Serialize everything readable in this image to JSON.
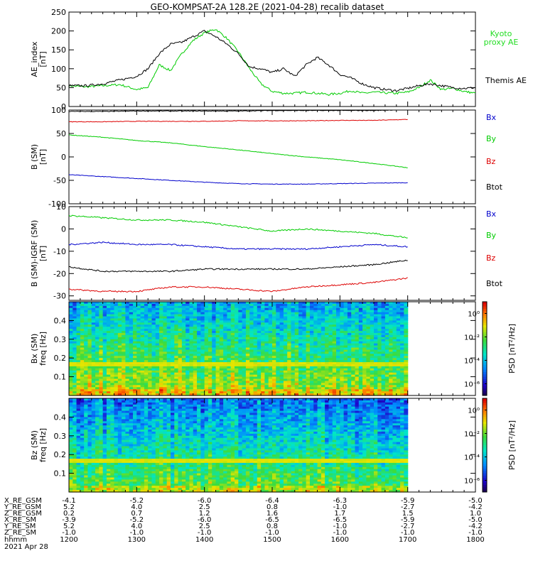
{
  "title": "GEO-KOMPSAT-2A 128.2E (2021-04-28) recalib dataset",
  "colors": {
    "axis": "#000000",
    "black": "#000000",
    "green": "#00cc00",
    "kyoto": "#22dd22",
    "red": "#dd0000",
    "blue": "#0000cc"
  },
  "chart_data": [
    {
      "type": "line",
      "id": "ae",
      "ylabel": [
        "AE_index",
        "[nT]"
      ],
      "ylim": [
        0,
        250
      ],
      "yticks": [
        0,
        50,
        100,
        150,
        200,
        250
      ],
      "xlim": [
        1200,
        1800
      ],
      "x_hhmm": [
        1200,
        1215,
        1230,
        1245,
        1300,
        1310,
        1320,
        1330,
        1340,
        1350,
        1400,
        1410,
        1420,
        1430,
        1440,
        1450,
        1500,
        1510,
        1520,
        1530,
        1540,
        1550,
        1600,
        1610,
        1620,
        1630,
        1640,
        1650,
        1700,
        1710,
        1720,
        1730,
        1740,
        1750,
        1800
      ],
      "series": [
        {
          "name": "Kyoto proxy AE",
          "color": "green",
          "values": [
            55,
            52,
            55,
            58,
            45,
            50,
            110,
            95,
            140,
            175,
            195,
            205,
            180,
            145,
            100,
            60,
            40,
            35,
            35,
            38,
            35,
            32,
            35,
            42,
            35,
            38,
            36,
            35,
            38,
            50,
            70,
            45,
            48,
            40,
            35
          ]
        },
        {
          "name": "Themis AE",
          "color": "black",
          "values": [
            55,
            55,
            60,
            70,
            80,
            100,
            140,
            165,
            170,
            185,
            200,
            185,
            165,
            140,
            105,
            100,
            90,
            100,
            80,
            110,
            130,
            110,
            85,
            75,
            60,
            50,
            45,
            42,
            48,
            55,
            60,
            55,
            50,
            48,
            50
          ]
        }
      ],
      "legend": [
        {
          "text": "Kyoto",
          "color": "kyoto"
        },
        {
          "text": "proxy AE",
          "color": "kyoto"
        },
        {
          "text": "Themis AE",
          "color": "black"
        }
      ]
    },
    {
      "type": "line",
      "id": "bsm",
      "ylabel": [
        "B (SM)",
        "[nT]"
      ],
      "ylim": [
        -100,
        100
      ],
      "yticks": [
        -100,
        -50,
        0,
        50,
        100
      ],
      "xlim": [
        1200,
        1800
      ],
      "x_hhmm": [
        1200,
        1230,
        1300,
        1330,
        1400,
        1430,
        1500,
        1530,
        1600,
        1630,
        1700
      ],
      "series": [
        {
          "name": "Bx",
          "color": "blue",
          "values": [
            -38,
            -42,
            -46,
            -50,
            -54,
            -57,
            -58,
            -58,
            -57,
            -56,
            -55
          ]
        },
        {
          "name": "By",
          "color": "green",
          "values": [
            47,
            42,
            35,
            30,
            22,
            15,
            7,
            0,
            -6,
            -14,
            -23
          ]
        },
        {
          "name": "Bz",
          "color": "red",
          "values": [
            75,
            75,
            76,
            76,
            76,
            77,
            77,
            77,
            78,
            78,
            80
          ]
        },
        {
          "name": "Btot",
          "color": "black",
          "values": [
            97,
            97,
            98,
            98,
            98,
            98,
            99,
            99,
            99,
            99,
            101
          ]
        }
      ],
      "legend": [
        {
          "text": "Bx",
          "color": "blue"
        },
        {
          "text": "By",
          "color": "green"
        },
        {
          "text": "Bz",
          "color": "red"
        },
        {
          "text": "Btot",
          "color": "black"
        }
      ]
    },
    {
      "type": "line",
      "id": "bigrf",
      "ylabel": [
        "B (SM)-IGRF (SM)",
        "[nT]"
      ],
      "ylim": [
        -32,
        10
      ],
      "yticks": [
        -30,
        -20,
        -10,
        0,
        10
      ],
      "xlim": [
        1200,
        1800
      ],
      "x_hhmm": [
        1200,
        1230,
        1300,
        1330,
        1400,
        1430,
        1500,
        1530,
        1600,
        1630,
        1700
      ],
      "series": [
        {
          "name": "By",
          "color": "green",
          "values": [
            6,
            5,
            4,
            4,
            3,
            1,
            -1,
            0,
            -1,
            -2,
            -4
          ]
        },
        {
          "name": "Bx",
          "color": "blue",
          "values": [
            -7,
            -6,
            -7,
            -7,
            -8,
            -9,
            -9,
            -9,
            -8,
            -7,
            -8
          ]
        },
        {
          "name": "Btot",
          "color": "black",
          "values": [
            -17,
            -19,
            -19,
            -19,
            -18,
            -18,
            -18,
            -18,
            -17,
            -16,
            -14
          ]
        },
        {
          "name": "Bz",
          "color": "red",
          "values": [
            -27,
            -28,
            -28,
            -26,
            -26,
            -27,
            -28,
            -26,
            -25,
            -24,
            -22
          ]
        }
      ],
      "legend": [
        {
          "text": "Bx",
          "color": "blue"
        },
        {
          "text": "By",
          "color": "green"
        },
        {
          "text": "Bz",
          "color": "red"
        },
        {
          "text": "Btot",
          "color": "black"
        }
      ]
    },
    {
      "type": "heatmap",
      "id": "specbx",
      "ylabel": [
        "Bx (SM)",
        "freq [Hz]"
      ],
      "ylim": [
        0,
        0.5
      ],
      "yticks": [
        0.1,
        0.2,
        0.3,
        0.4
      ],
      "xlim": [
        1200,
        1800
      ],
      "data_end_hhmm": 1700,
      "colorbar": {
        "label": "PSD [nT²/Hz]",
        "ticks": [
          "10⁰",
          "10⁻²",
          "10⁻⁴",
          "10⁻⁶"
        ],
        "tick_exponents": [
          0,
          -2,
          -4,
          -6
        ]
      }
    },
    {
      "type": "heatmap",
      "id": "specbz",
      "ylabel": [
        "Bz (SM)",
        "freq [Hz]"
      ],
      "ylim": [
        0,
        0.5
      ],
      "yticks": [
        0.1,
        0.2,
        0.3,
        0.4
      ],
      "xlim": [
        1200,
        1800
      ],
      "data_end_hhmm": 1700,
      "colorbar": {
        "label": "PSD [nT²/Hz]",
        "ticks": [
          "10⁰",
          "10⁻²",
          "10⁻⁴",
          "10⁻⁶"
        ],
        "tick_exponents": [
          0,
          -2,
          -4,
          -6
        ]
      }
    }
  ],
  "ephemeris": {
    "labels": [
      "X_RE_GSM",
      "Y_RE_GSM",
      "Z_RE_GSM",
      "X_RE_SM",
      "Y_RE_SM",
      "Z_RE_SM",
      "hhmm",
      "2021 Apr 28"
    ],
    "columns": [
      [
        "-4.1",
        "5.2",
        "0.2",
        "-3.9",
        "5.2",
        "-1.0",
        "1200"
      ],
      [
        "-5.2",
        "4.0",
        "0.7",
        "-5.2",
        "4.0",
        "-1.0",
        "1300"
      ],
      [
        "-6.0",
        "2.5",
        "1.2",
        "-6.0",
        "2.5",
        "-1.0",
        "1400"
      ],
      [
        "-6.4",
        "0.8",
        "1.6",
        "-6.5",
        "0.8",
        "-1.0",
        "1500"
      ],
      [
        "-6.3",
        "-1.0",
        "1.7",
        "-6.5",
        "-1.0",
        "-1.0",
        "1600"
      ],
      [
        "-5.9",
        "-2.7",
        "1.5",
        "-5.9",
        "-2.7",
        "-1.0",
        "1700"
      ],
      [
        "-5.0",
        "-4.2",
        "1.0",
        "-5.0",
        "-4.2",
        "-1.0",
        "1800"
      ]
    ]
  }
}
